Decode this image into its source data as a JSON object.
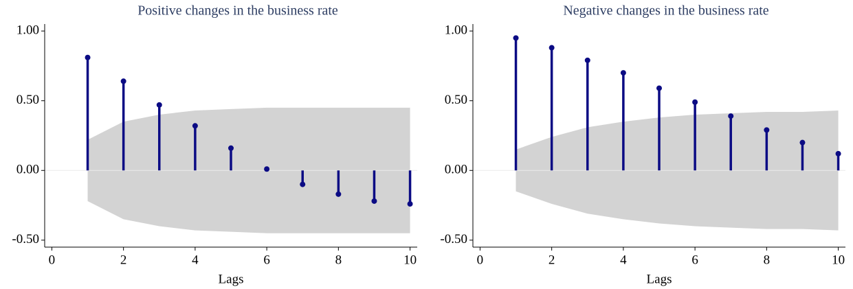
{
  "chart_data": [
    {
      "type": "stem",
      "title": "Positive changes in the business rate",
      "xlabel": "Lags",
      "x": [
        1,
        2,
        3,
        4,
        5,
        6,
        7,
        8,
        9,
        10
      ],
      "values": [
        0.81,
        0.64,
        0.47,
        0.32,
        0.16,
        0.01,
        -0.1,
        -0.17,
        -0.22,
        -0.24
      ],
      "band_upper": [
        0.22,
        0.35,
        0.4,
        0.43,
        0.44,
        0.45,
        0.45,
        0.45,
        0.45,
        0.45
      ],
      "band_lower": [
        -0.22,
        -0.35,
        -0.4,
        -0.43,
        -0.44,
        -0.45,
        -0.45,
        -0.45,
        -0.45,
        -0.45
      ],
      "color": "#0b0b84",
      "band_color": "#d3d3d3",
      "xlim": [
        -0.2,
        10.2
      ],
      "xticks": [
        0,
        2,
        4,
        6,
        8,
        10
      ],
      "ylim": [
        -0.55,
        1.05
      ],
      "yticks": [
        {
          "value": -0.5,
          "label": "-0.50"
        },
        {
          "value": 0,
          "label": "0.00"
        },
        {
          "value": 0.5,
          "label": "0.50"
        },
        {
          "value": 1,
          "label": "1.00"
        }
      ]
    },
    {
      "type": "stem",
      "title": "Negative changes in the business rate",
      "xlabel": "Lags",
      "x": [
        1,
        2,
        3,
        4,
        5,
        6,
        7,
        8,
        9,
        10
      ],
      "values": [
        0.95,
        0.88,
        0.79,
        0.7,
        0.59,
        0.49,
        0.39,
        0.29,
        0.2,
        0.12
      ],
      "band_upper": [
        0.15,
        0.24,
        0.31,
        0.35,
        0.38,
        0.4,
        0.41,
        0.42,
        0.42,
        0.43
      ],
      "band_lower": [
        -0.15,
        -0.24,
        -0.31,
        -0.35,
        -0.38,
        -0.4,
        -0.41,
        -0.42,
        -0.42,
        -0.43
      ],
      "color": "#0b0b84",
      "band_color": "#d3d3d3",
      "xlim": [
        -0.2,
        10.2
      ],
      "xticks": [
        0,
        2,
        4,
        6,
        8,
        10
      ],
      "ylim": [
        -0.55,
        1.05
      ],
      "yticks": [
        {
          "value": -0.5,
          "label": "-0.50"
        },
        {
          "value": 0,
          "label": "0.00"
        },
        {
          "value": 0.5,
          "label": "0.50"
        },
        {
          "value": 1,
          "label": "1.00"
        }
      ]
    }
  ]
}
